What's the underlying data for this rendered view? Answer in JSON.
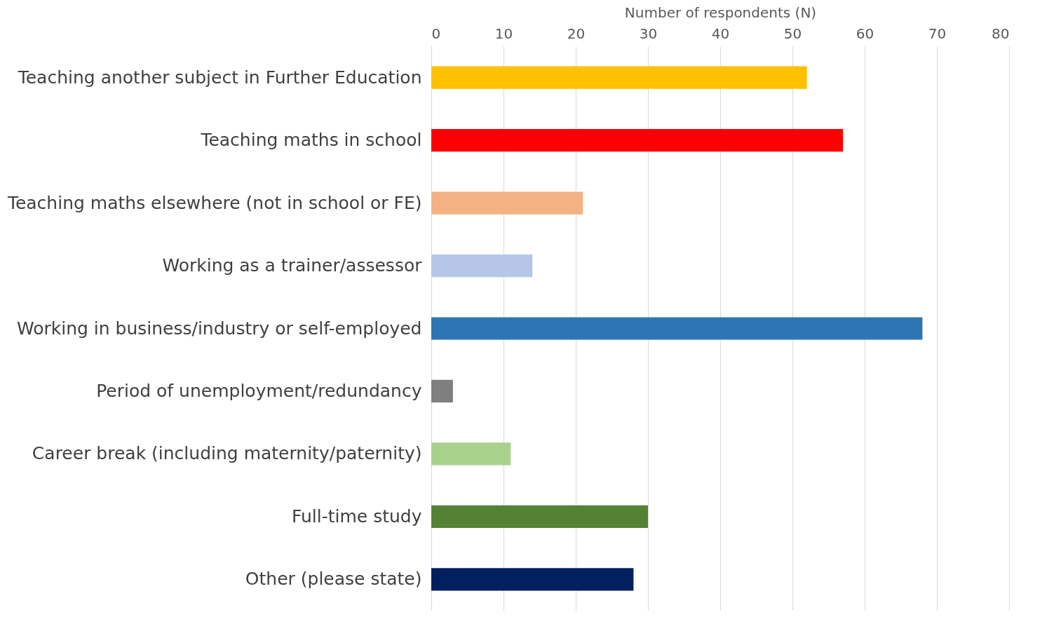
{
  "chart_data": {
    "type": "bar",
    "orientation": "horizontal",
    "xlabel": "Number of respondents (N)",
    "categories": [
      "Teaching another subject in Further Education",
      "Teaching maths in school",
      "Teaching maths elsewhere (not in school or FE)",
      "Working as a trainer/assessor",
      "Working in business/industry or self-employed",
      "Period of unemployment/redundancy",
      "Career break (including maternity/paternity)",
      "Full-time study",
      "Other (please state)"
    ],
    "values": [
      52,
      57,
      21,
      14,
      68,
      3,
      11,
      30,
      28
    ],
    "colors": [
      "#ffc000",
      "#ff0000",
      "#f4b183",
      "#b4c7e7",
      "#2e75b6",
      "#7f7f7f",
      "#a9d18e",
      "#548235",
      "#002060"
    ],
    "xlim": [
      0,
      80
    ],
    "xticks": [
      0,
      10,
      20,
      30,
      40,
      50,
      60,
      70,
      80
    ],
    "grid": "x"
  }
}
